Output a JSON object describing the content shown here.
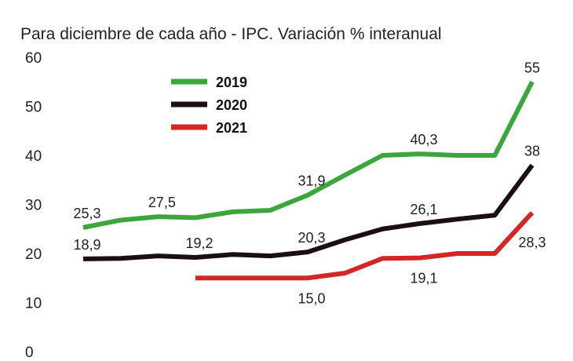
{
  "chart_data": {
    "type": "line",
    "title": "Para diciembre de cada año - IPC. Variación % interanual",
    "xlabel": "",
    "ylabel": "",
    "ylim": [
      0,
      60
    ],
    "yticks": [
      "0",
      "10",
      "20",
      "30",
      "40",
      "50",
      "60"
    ],
    "grid": false,
    "legend_position": "top-left",
    "series": [
      {
        "name": "2019",
        "color": "#3ca63c",
        "values": [
          25.3,
          26.8,
          27.5,
          27.3,
          28.5,
          28.8,
          31.9,
          36.0,
          40.0,
          40.3,
          40.0,
          40.0,
          55
        ],
        "labels": [
          {
            "index": 0,
            "text": "25,3"
          },
          {
            "index": 2,
            "text": "27,5"
          },
          {
            "index": 6,
            "text": "31,9"
          },
          {
            "index": 9,
            "text": "40,3"
          },
          {
            "index": 12,
            "text": "55"
          }
        ]
      },
      {
        "name": "2020",
        "color": "#1a1010",
        "values": [
          18.9,
          19.0,
          19.5,
          19.2,
          19.8,
          19.5,
          20.3,
          22.8,
          25.0,
          26.1,
          27.0,
          27.8,
          38
        ],
        "labels": [
          {
            "index": 0,
            "text": "18,9"
          },
          {
            "index": 3,
            "text": "19,2"
          },
          {
            "index": 6,
            "text": "20,3"
          },
          {
            "index": 9,
            "text": "26,1"
          },
          {
            "index": 12,
            "text": "38"
          }
        ]
      },
      {
        "name": "2021",
        "color": "#d42626",
        "values": [
          null,
          null,
          null,
          15.0,
          15.0,
          15.0,
          15.0,
          16.0,
          19.0,
          19.1,
          20.0,
          20.0,
          28.3
        ],
        "labels": [
          {
            "index": 6,
            "text": "15,0"
          },
          {
            "index": 9,
            "text": "19,1"
          },
          {
            "index": 12,
            "text": "28,3"
          }
        ]
      }
    ]
  }
}
